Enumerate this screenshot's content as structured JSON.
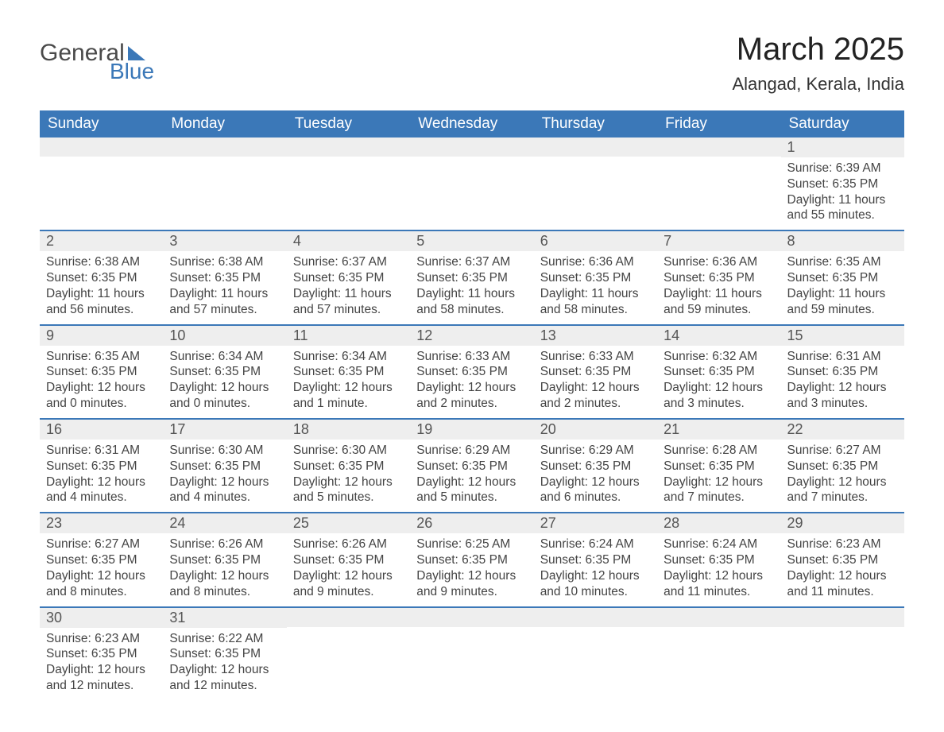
{
  "logo": {
    "line1": "General",
    "line2": "Blue"
  },
  "title": "March 2025",
  "location": "Alangad, Kerala, India",
  "colors": {
    "header_bg": "#3b78b8",
    "header_text": "#ffffff",
    "daynum_bg": "#eeeeee",
    "row_border": "#3b78b8",
    "body_text": "#444444",
    "title_text": "#222222",
    "background": "#ffffff"
  },
  "day_headers": [
    "Sunday",
    "Monday",
    "Tuesday",
    "Wednesday",
    "Thursday",
    "Friday",
    "Saturday"
  ],
  "weeks": [
    [
      {
        "n": "",
        "sunrise": "",
        "sunset": "",
        "daylight": ""
      },
      {
        "n": "",
        "sunrise": "",
        "sunset": "",
        "daylight": ""
      },
      {
        "n": "",
        "sunrise": "",
        "sunset": "",
        "daylight": ""
      },
      {
        "n": "",
        "sunrise": "",
        "sunset": "",
        "daylight": ""
      },
      {
        "n": "",
        "sunrise": "",
        "sunset": "",
        "daylight": ""
      },
      {
        "n": "",
        "sunrise": "",
        "sunset": "",
        "daylight": ""
      },
      {
        "n": "1",
        "sunrise": "Sunrise: 6:39 AM",
        "sunset": "Sunset: 6:35 PM",
        "daylight": "Daylight: 11 hours and 55 minutes."
      }
    ],
    [
      {
        "n": "2",
        "sunrise": "Sunrise: 6:38 AM",
        "sunset": "Sunset: 6:35 PM",
        "daylight": "Daylight: 11 hours and 56 minutes."
      },
      {
        "n": "3",
        "sunrise": "Sunrise: 6:38 AM",
        "sunset": "Sunset: 6:35 PM",
        "daylight": "Daylight: 11 hours and 57 minutes."
      },
      {
        "n": "4",
        "sunrise": "Sunrise: 6:37 AM",
        "sunset": "Sunset: 6:35 PM",
        "daylight": "Daylight: 11 hours and 57 minutes."
      },
      {
        "n": "5",
        "sunrise": "Sunrise: 6:37 AM",
        "sunset": "Sunset: 6:35 PM",
        "daylight": "Daylight: 11 hours and 58 minutes."
      },
      {
        "n": "6",
        "sunrise": "Sunrise: 6:36 AM",
        "sunset": "Sunset: 6:35 PM",
        "daylight": "Daylight: 11 hours and 58 minutes."
      },
      {
        "n": "7",
        "sunrise": "Sunrise: 6:36 AM",
        "sunset": "Sunset: 6:35 PM",
        "daylight": "Daylight: 11 hours and 59 minutes."
      },
      {
        "n": "8",
        "sunrise": "Sunrise: 6:35 AM",
        "sunset": "Sunset: 6:35 PM",
        "daylight": "Daylight: 11 hours and 59 minutes."
      }
    ],
    [
      {
        "n": "9",
        "sunrise": "Sunrise: 6:35 AM",
        "sunset": "Sunset: 6:35 PM",
        "daylight": "Daylight: 12 hours and 0 minutes."
      },
      {
        "n": "10",
        "sunrise": "Sunrise: 6:34 AM",
        "sunset": "Sunset: 6:35 PM",
        "daylight": "Daylight: 12 hours and 0 minutes."
      },
      {
        "n": "11",
        "sunrise": "Sunrise: 6:34 AM",
        "sunset": "Sunset: 6:35 PM",
        "daylight": "Daylight: 12 hours and 1 minute."
      },
      {
        "n": "12",
        "sunrise": "Sunrise: 6:33 AM",
        "sunset": "Sunset: 6:35 PM",
        "daylight": "Daylight: 12 hours and 2 minutes."
      },
      {
        "n": "13",
        "sunrise": "Sunrise: 6:33 AM",
        "sunset": "Sunset: 6:35 PM",
        "daylight": "Daylight: 12 hours and 2 minutes."
      },
      {
        "n": "14",
        "sunrise": "Sunrise: 6:32 AM",
        "sunset": "Sunset: 6:35 PM",
        "daylight": "Daylight: 12 hours and 3 minutes."
      },
      {
        "n": "15",
        "sunrise": "Sunrise: 6:31 AM",
        "sunset": "Sunset: 6:35 PM",
        "daylight": "Daylight: 12 hours and 3 minutes."
      }
    ],
    [
      {
        "n": "16",
        "sunrise": "Sunrise: 6:31 AM",
        "sunset": "Sunset: 6:35 PM",
        "daylight": "Daylight: 12 hours and 4 minutes."
      },
      {
        "n": "17",
        "sunrise": "Sunrise: 6:30 AM",
        "sunset": "Sunset: 6:35 PM",
        "daylight": "Daylight: 12 hours and 4 minutes."
      },
      {
        "n": "18",
        "sunrise": "Sunrise: 6:30 AM",
        "sunset": "Sunset: 6:35 PM",
        "daylight": "Daylight: 12 hours and 5 minutes."
      },
      {
        "n": "19",
        "sunrise": "Sunrise: 6:29 AM",
        "sunset": "Sunset: 6:35 PM",
        "daylight": "Daylight: 12 hours and 5 minutes."
      },
      {
        "n": "20",
        "sunrise": "Sunrise: 6:29 AM",
        "sunset": "Sunset: 6:35 PM",
        "daylight": "Daylight: 12 hours and 6 minutes."
      },
      {
        "n": "21",
        "sunrise": "Sunrise: 6:28 AM",
        "sunset": "Sunset: 6:35 PM",
        "daylight": "Daylight: 12 hours and 7 minutes."
      },
      {
        "n": "22",
        "sunrise": "Sunrise: 6:27 AM",
        "sunset": "Sunset: 6:35 PM",
        "daylight": "Daylight: 12 hours and 7 minutes."
      }
    ],
    [
      {
        "n": "23",
        "sunrise": "Sunrise: 6:27 AM",
        "sunset": "Sunset: 6:35 PM",
        "daylight": "Daylight: 12 hours and 8 minutes."
      },
      {
        "n": "24",
        "sunrise": "Sunrise: 6:26 AM",
        "sunset": "Sunset: 6:35 PM",
        "daylight": "Daylight: 12 hours and 8 minutes."
      },
      {
        "n": "25",
        "sunrise": "Sunrise: 6:26 AM",
        "sunset": "Sunset: 6:35 PM",
        "daylight": "Daylight: 12 hours and 9 minutes."
      },
      {
        "n": "26",
        "sunrise": "Sunrise: 6:25 AM",
        "sunset": "Sunset: 6:35 PM",
        "daylight": "Daylight: 12 hours and 9 minutes."
      },
      {
        "n": "27",
        "sunrise": "Sunrise: 6:24 AM",
        "sunset": "Sunset: 6:35 PM",
        "daylight": "Daylight: 12 hours and 10 minutes."
      },
      {
        "n": "28",
        "sunrise": "Sunrise: 6:24 AM",
        "sunset": "Sunset: 6:35 PM",
        "daylight": "Daylight: 12 hours and 11 minutes."
      },
      {
        "n": "29",
        "sunrise": "Sunrise: 6:23 AM",
        "sunset": "Sunset: 6:35 PM",
        "daylight": "Daylight: 12 hours and 11 minutes."
      }
    ],
    [
      {
        "n": "30",
        "sunrise": "Sunrise: 6:23 AM",
        "sunset": "Sunset: 6:35 PM",
        "daylight": "Daylight: 12 hours and 12 minutes."
      },
      {
        "n": "31",
        "sunrise": "Sunrise: 6:22 AM",
        "sunset": "Sunset: 6:35 PM",
        "daylight": "Daylight: 12 hours and 12 minutes."
      },
      {
        "n": "",
        "sunrise": "",
        "sunset": "",
        "daylight": ""
      },
      {
        "n": "",
        "sunrise": "",
        "sunset": "",
        "daylight": ""
      },
      {
        "n": "",
        "sunrise": "",
        "sunset": "",
        "daylight": ""
      },
      {
        "n": "",
        "sunrise": "",
        "sunset": "",
        "daylight": ""
      },
      {
        "n": "",
        "sunrise": "",
        "sunset": "",
        "daylight": ""
      }
    ]
  ]
}
